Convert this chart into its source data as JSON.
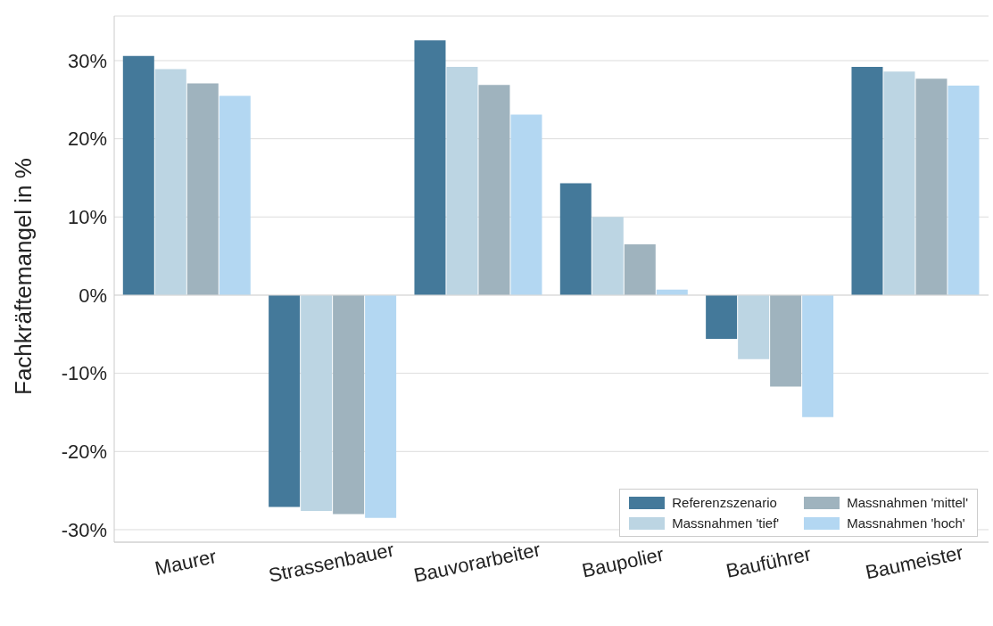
{
  "chart_data": {
    "type": "bar",
    "ylabel": "Fachkräftemangel in %",
    "categories": [
      "Maurer",
      "Strassenbauer",
      "Bauvorarbeiter",
      "Baupolier",
      "Bauführer",
      "Baumeister"
    ],
    "series": [
      {
        "name": "Referenzszenario",
        "color": "#44799a",
        "values": [
          30.6,
          -27.1,
          32.6,
          14.3,
          -5.6,
          29.2
        ]
      },
      {
        "name": "Massnahmen 'tief'",
        "color": "#bcd5e3",
        "values": [
          28.9,
          -27.6,
          29.2,
          10.0,
          -8.2,
          28.6
        ]
      },
      {
        "name": "Massnahmen 'mittel'",
        "color": "#9fb3be",
        "values": [
          27.1,
          -28.0,
          26.9,
          6.5,
          -11.7,
          27.7
        ]
      },
      {
        "name": "Massnahmen 'hoch'",
        "color": "#b3d7f2",
        "values": [
          25.5,
          -28.5,
          23.1,
          0.7,
          -15.6,
          26.8
        ]
      }
    ],
    "ylim": [
      -31.6,
      35.7
    ],
    "yticks": [
      {
        "value": -30,
        "label": "-30%"
      },
      {
        "value": -20,
        "label": "-20%"
      },
      {
        "value": -10,
        "label": "-10%"
      },
      {
        "value": 0,
        "label": "0%"
      },
      {
        "value": 10,
        "label": "10%"
      },
      {
        "value": 20,
        "label": "20%"
      },
      {
        "value": 30,
        "label": "30%"
      }
    ],
    "grid": "y",
    "legend": "bottom right"
  }
}
